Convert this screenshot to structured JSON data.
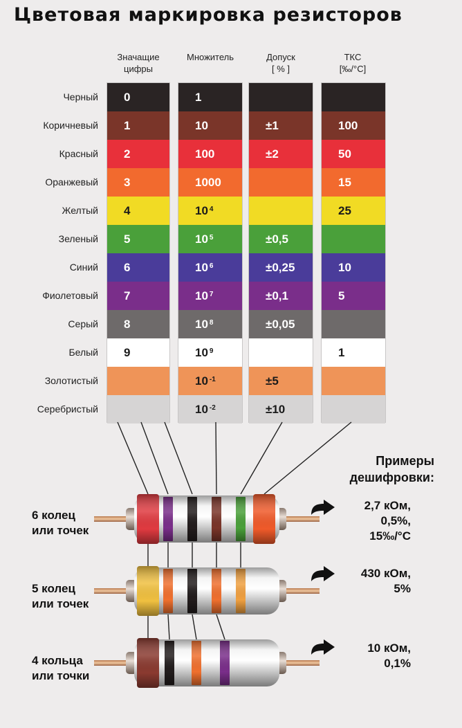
{
  "title": "Цветовая маркировка резисторов",
  "columns": [
    {
      "line1": "Значащие",
      "line2": "цифры"
    },
    {
      "line1": "Множитель",
      "line2": ""
    },
    {
      "line1": "Допуск",
      "line2": "[ % ]"
    },
    {
      "line1": "ТКС",
      "line2": "[‰/°C]"
    }
  ],
  "rows": [
    {
      "name": "Черный",
      "color": "#2a2424",
      "text": "#ffffff",
      "digit": "0",
      "mult": "1",
      "mult_exp": "",
      "tol": "",
      "tks": ""
    },
    {
      "name": "Коричневый",
      "color": "#7a3529",
      "text": "#ffffff",
      "digit": "1",
      "mult": "10",
      "mult_exp": "",
      "tol": "±1",
      "tks": "100"
    },
    {
      "name": "Красный",
      "color": "#e8303a",
      "text": "#ffffff",
      "digit": "2",
      "mult": "100",
      "mult_exp": "",
      "tol": "±2",
      "tks": "50"
    },
    {
      "name": "Оранжевый",
      "color": "#f26a2e",
      "text": "#ffffff",
      "digit": "3",
      "mult": "1000",
      "mult_exp": "",
      "tol": "",
      "tks": "15"
    },
    {
      "name": "Желтый",
      "color": "#f1db24",
      "text": "#1a1a1a",
      "digit": "4",
      "mult": "10",
      "mult_exp": "4",
      "tol": "",
      "tks": "25"
    },
    {
      "name": "Зеленый",
      "color": "#4aa03a",
      "text": "#ffffff",
      "digit": "5",
      "mult": "10",
      "mult_exp": "5",
      "tol": "±0,5",
      "tks": ""
    },
    {
      "name": "Синий",
      "color": "#4a3c9a",
      "text": "#ffffff",
      "digit": "6",
      "mult": "10",
      "mult_exp": "6",
      "tol": "±0,25",
      "tks": "10"
    },
    {
      "name": "Фиолетовый",
      "color": "#7a2e8a",
      "text": "#ffffff",
      "digit": "7",
      "mult": "10",
      "mult_exp": "7",
      "tol": "±0,1",
      "tks": "5"
    },
    {
      "name": "Серый",
      "color": "#6e6a6a",
      "text": "#ffffff",
      "digit": "8",
      "mult": "10",
      "mult_exp": "8",
      "tol": "±0,05",
      "tks": ""
    },
    {
      "name": "Белый",
      "color": "#ffffff",
      "text": "#1a1a1a",
      "digit": "9",
      "mult": "10",
      "mult_exp": "9",
      "tol": "",
      "tks": "1"
    },
    {
      "name": "Золотистый",
      "color": "#ef9458",
      "text": "#1a1a1a",
      "digit": "",
      "mult": "10",
      "mult_exp": "-1",
      "tol": "±5",
      "tks": ""
    },
    {
      "name": "Серебристый",
      "color": "#d6d4d4",
      "text": "#1a1a1a",
      "digit": "",
      "mult": "10",
      "mult_exp": "-2",
      "tol": "±10",
      "tks": ""
    }
  ],
  "resistors": [
    {
      "label_line1": "6 колец",
      "label_line2": "или точек",
      "bands": [
        "#e03a40",
        "#7a2e8a",
        "#221c1c",
        "#7a3529",
        "#4aa03a",
        "#f05a2a"
      ]
    },
    {
      "label_line1": "5 колец",
      "label_line2": "или точек",
      "bands": [
        "#f0c040",
        "#f0702e",
        "#221c1c",
        "#f0702e",
        "#f0a040"
      ]
    },
    {
      "label_line1": "4 кольца",
      "label_line2": "или точки",
      "bands": [
        "#8a3a30",
        "#221c1c",
        "#f0702e",
        "#7a2e8a"
      ]
    }
  ],
  "examples_title_line1": "Примеры",
  "examples_title_line2": "дешифровки:",
  "examples": [
    {
      "lines": [
        "2,7 кОм,",
        "0,5%,",
        "15‰/°C"
      ]
    },
    {
      "lines": [
        "430 кОм,",
        "5%"
      ]
    },
    {
      "lines": [
        "10 кОм,",
        "0,1%"
      ]
    }
  ]
}
